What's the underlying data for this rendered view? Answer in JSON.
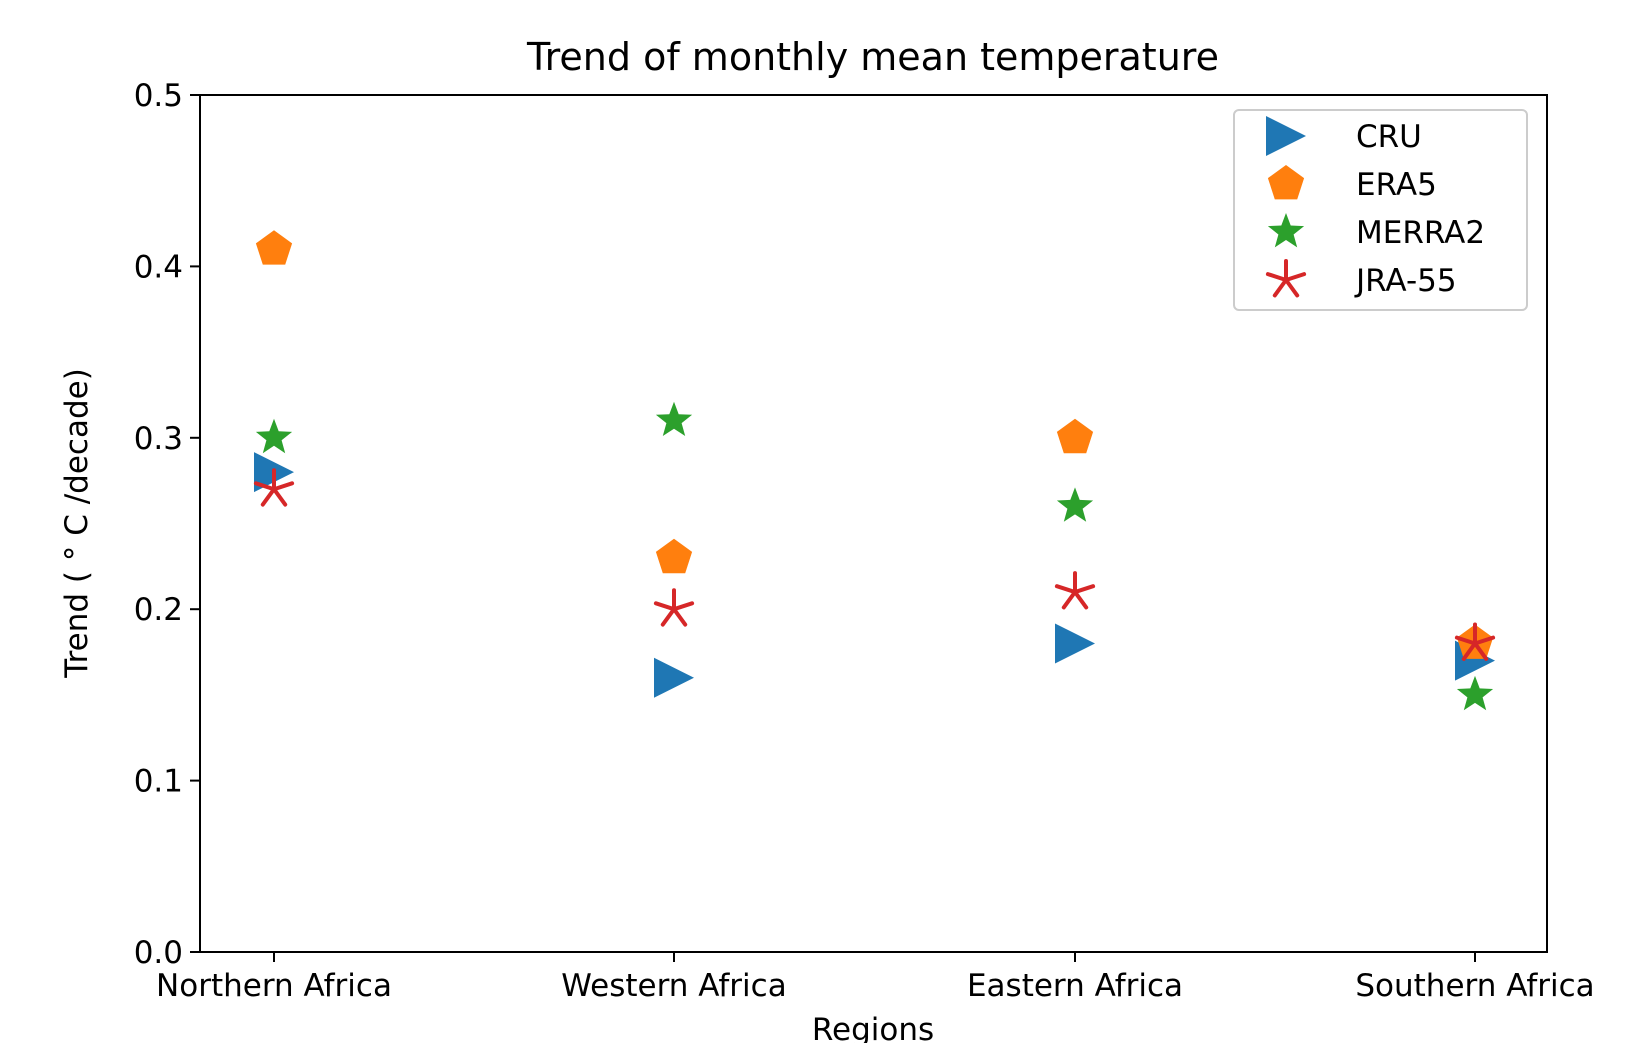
{
  "chart_data": {
    "type": "scatter",
    "title": "Trend of monthly mean temperature",
    "xlabel": "Regions",
    "ylabel": "Trend ( ° C /decade)",
    "categories": [
      "Northern Africa",
      "Western Africa",
      "Eastern Africa",
      "Southern Africa"
    ],
    "ylim": [
      0.0,
      0.5
    ],
    "yticks": [
      "0.0",
      "0.1",
      "0.2",
      "0.3",
      "0.4",
      "0.5"
    ],
    "grid": false,
    "legend_position": "top-right",
    "series": [
      {
        "name": "CRU",
        "marker": "triangle-right",
        "color": "#1f77b4",
        "values": [
          0.28,
          0.16,
          0.18,
          0.17
        ]
      },
      {
        "name": "ERA5",
        "marker": "pentagon",
        "color": "#ff7f0e",
        "values": [
          0.41,
          0.23,
          0.3,
          0.18
        ]
      },
      {
        "name": "MERRA2",
        "marker": "star",
        "color": "#2ca02c",
        "values": [
          0.3,
          0.31,
          0.26,
          0.15
        ]
      },
      {
        "name": "JRA-55",
        "marker": "asterisk",
        "color": "#d62728",
        "values": [
          0.27,
          0.2,
          0.21,
          0.18
        ]
      }
    ]
  }
}
